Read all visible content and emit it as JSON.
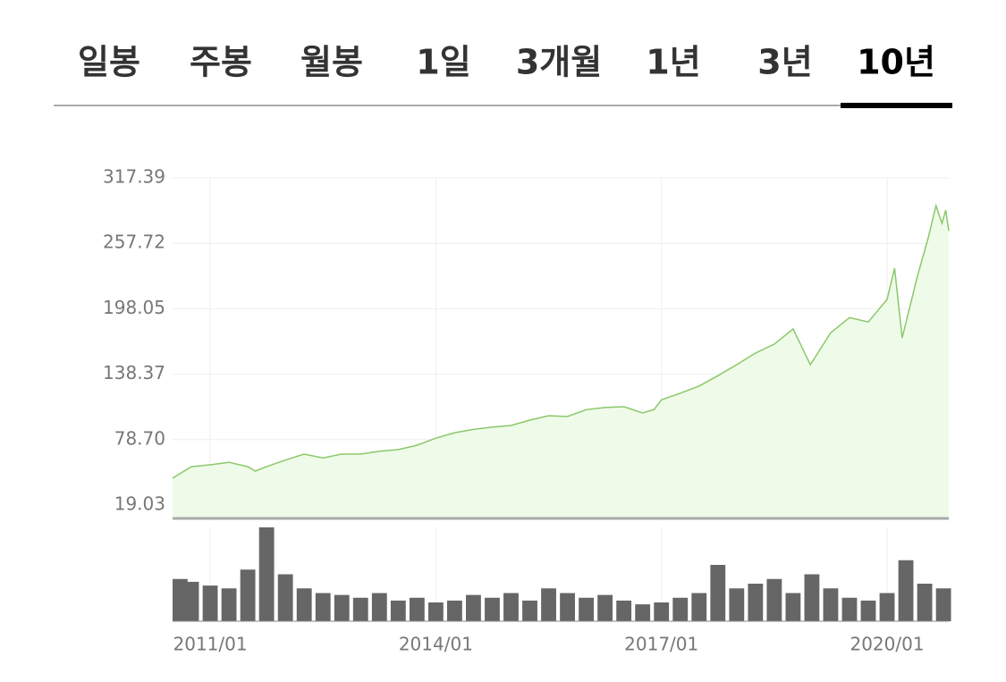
{
  "tabs": [
    {
      "label": "일봉"
    },
    {
      "label": "주봉"
    },
    {
      "label": "월봉"
    },
    {
      "label": "1일"
    },
    {
      "label": "3개월"
    },
    {
      "label": "1년"
    },
    {
      "label": "3년"
    },
    {
      "label": "10년",
      "selected": true
    }
  ],
  "chart_data": {
    "type": "area",
    "x": [
      2010.5,
      2010.75,
      2011.0,
      2011.25,
      2011.5,
      2011.6,
      2011.75,
      2012.0,
      2012.25,
      2012.5,
      2012.75,
      2013.0,
      2013.25,
      2013.5,
      2013.75,
      2014.0,
      2014.25,
      2014.5,
      2014.75,
      2015.0,
      2015.25,
      2015.5,
      2015.75,
      2016.0,
      2016.25,
      2016.5,
      2016.75,
      2016.9,
      2017.0,
      2017.25,
      2017.5,
      2017.75,
      2018.0,
      2018.25,
      2018.5,
      2018.75,
      2018.98,
      2019.25,
      2019.5,
      2019.75,
      2020.0,
      2020.1,
      2020.2,
      2020.4,
      2020.55,
      2020.65,
      2020.73,
      2020.78,
      2020.82
    ],
    "values": [
      43.5,
      54,
      55.7,
      58,
      54,
      50,
      54,
      60,
      65.5,
      62,
      65.5,
      65.5,
      68,
      69.6,
      73.6,
      80,
      85,
      88,
      90,
      91.6,
      96.5,
      100.5,
      99.7,
      106,
      108,
      108.7,
      103,
      106,
      115,
      121,
      127.5,
      137,
      147,
      157.6,
      165.8,
      179.6,
      147,
      176,
      190,
      186,
      206.5,
      235,
      171.5,
      227,
      263.6,
      292,
      276,
      288,
      269
    ],
    "color": "#8bc86a",
    "fill": "#effbe9",
    "xlim": [
      2010.5,
      2020.82
    ],
    "xticks": [
      {
        "value": 2011,
        "label": "2011/01"
      },
      {
        "value": 2014,
        "label": "2014/01"
      },
      {
        "value": 2017,
        "label": "2017/01"
      },
      {
        "value": 2020,
        "label": "2020/01"
      }
    ],
    "ylim": [
      6.8,
      317.39
    ],
    "yticks": [
      19.03,
      {
        "value": 78.7,
        "label": "78.70"
      },
      138.37,
      198.05,
      257.72,
      317.39
    ],
    "grid": true,
    "volume": {
      "color": "#666666",
      "ylim": [
        0,
        100
      ],
      "x": [
        2010.5,
        2010.75,
        2011.0,
        2011.25,
        2011.5,
        2011.75,
        2012.0,
        2012.25,
        2012.5,
        2012.75,
        2013.0,
        2013.25,
        2013.5,
        2013.75,
        2014.0,
        2014.25,
        2014.5,
        2014.75,
        2015.0,
        2015.25,
        2015.5,
        2015.75,
        2016.0,
        2016.25,
        2016.5,
        2016.75,
        2017.0,
        2017.25,
        2017.5,
        2017.75,
        2018.0,
        2018.25,
        2018.5,
        2018.75,
        2019.0,
        2019.25,
        2019.5,
        2019.75,
        2020.0,
        2020.25,
        2020.5,
        2020.75
      ],
      "values": [
        45,
        42,
        38,
        35,
        55,
        100,
        50,
        35,
        30,
        28,
        25,
        30,
        22,
        25,
        20,
        22,
        28,
        25,
        30,
        22,
        35,
        30,
        25,
        28,
        22,
        18,
        20,
        25,
        30,
        60,
        35,
        40,
        45,
        30,
        50,
        35,
        25,
        22,
        30,
        65,
        40,
        35
      ]
    }
  }
}
